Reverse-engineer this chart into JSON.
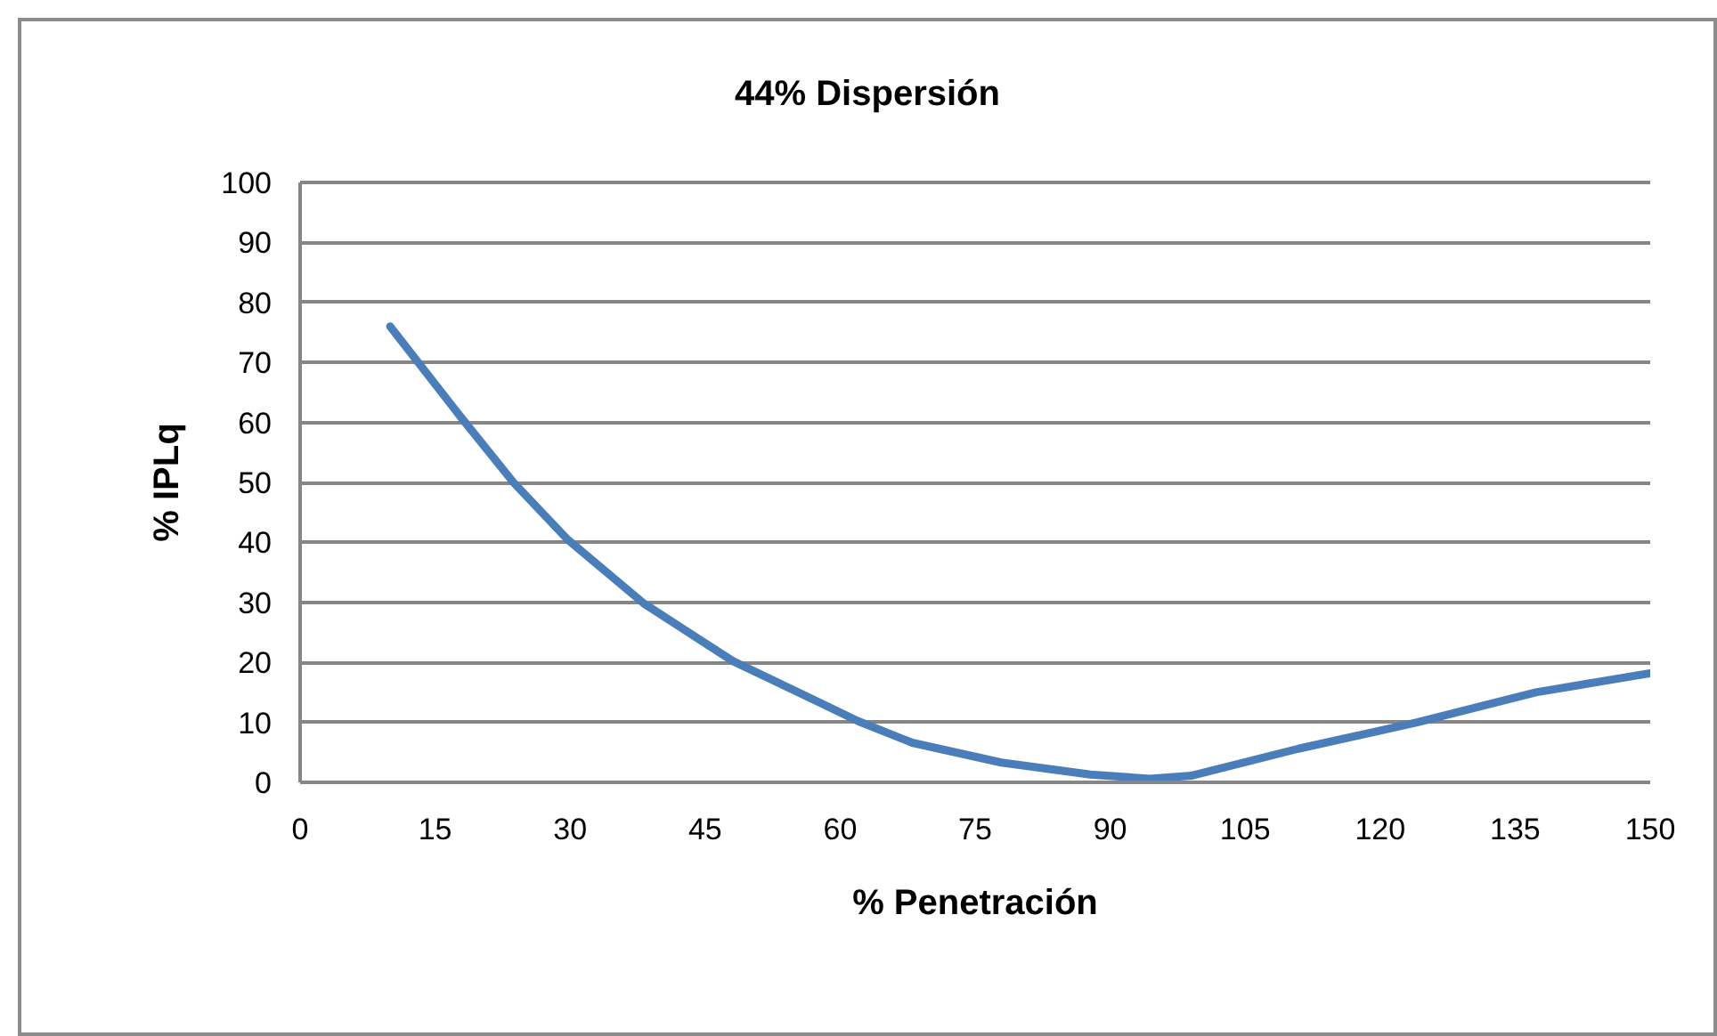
{
  "chart_data": {
    "type": "line",
    "title": "44% Dispersión",
    "xlabel": "% Penetración",
    "ylabel": "% IPLq",
    "x": [
      10,
      17.8,
      23.7,
      29.7,
      38.2,
      48.1,
      58,
      62,
      68,
      77.9,
      87.8,
      94.4,
      99,
      110.9,
      124.1,
      137.3,
      150
    ],
    "series": [
      {
        "color": "#4a7ebb",
        "values": [
          76,
          61,
          50,
          40.5,
          29.8,
          20.2,
          13.1,
          10.2,
          6.6,
          3.3,
          1.3,
          0.6,
          1.1,
          5.6,
          10,
          15,
          18.2
        ]
      }
    ],
    "xlim": [
      0,
      150
    ],
    "ylim": [
      0,
      100
    ],
    "xticks": [
      0,
      15,
      30,
      45,
      60,
      75,
      90,
      105,
      120,
      135,
      150
    ],
    "yticks": [
      0,
      10,
      20,
      30,
      40,
      50,
      60,
      70,
      80,
      90,
      100
    ],
    "grid": "y",
    "line_style": "solid"
  }
}
